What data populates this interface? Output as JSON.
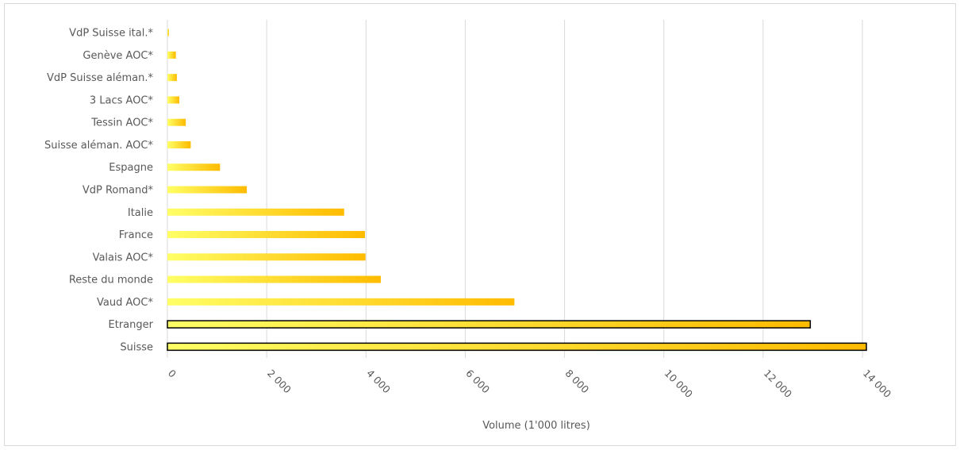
{
  "chart_data": {
    "type": "bar",
    "orientation": "horizontal",
    "categories": [
      "VdP Suisse ital.*",
      "Genève AOC*",
      "VdP Suisse aléman.*",
      "3 Lacs AOC*",
      "Tessin AOC*",
      "Suisse aléman. AOC*",
      "Espagne",
      "VdP Romand*",
      "Italie",
      "France",
      "Valais AOC*",
      "Reste du monde",
      "Vaud AOC*",
      "Etranger",
      "Suisse"
    ],
    "values": [
      30,
      170,
      190,
      240,
      370,
      470,
      1060,
      1600,
      3560,
      3980,
      3990,
      4300,
      6990,
      12950,
      14080
    ],
    "highlighted": [
      "Etranger",
      "Suisse"
    ],
    "xlabel": "Volume (1'000 litres)",
    "ylabel": "",
    "xlim": [
      0,
      14000
    ],
    "xticks": [
      0,
      2000,
      4000,
      6000,
      8000,
      10000,
      12000,
      14000
    ],
    "xtick_labels": [
      "0",
      "2 000",
      "4 000",
      "6 000",
      "8 000",
      "10 000",
      "12 000",
      "14 000"
    ],
    "grid": "vertical",
    "legend": "none",
    "colors": {
      "bar_gradient_start": "#ffff66",
      "bar_gradient_end": "#ffbb00",
      "highlight_border": "#000000",
      "gridline": "#d9d9d9",
      "text": "#595959"
    }
  }
}
